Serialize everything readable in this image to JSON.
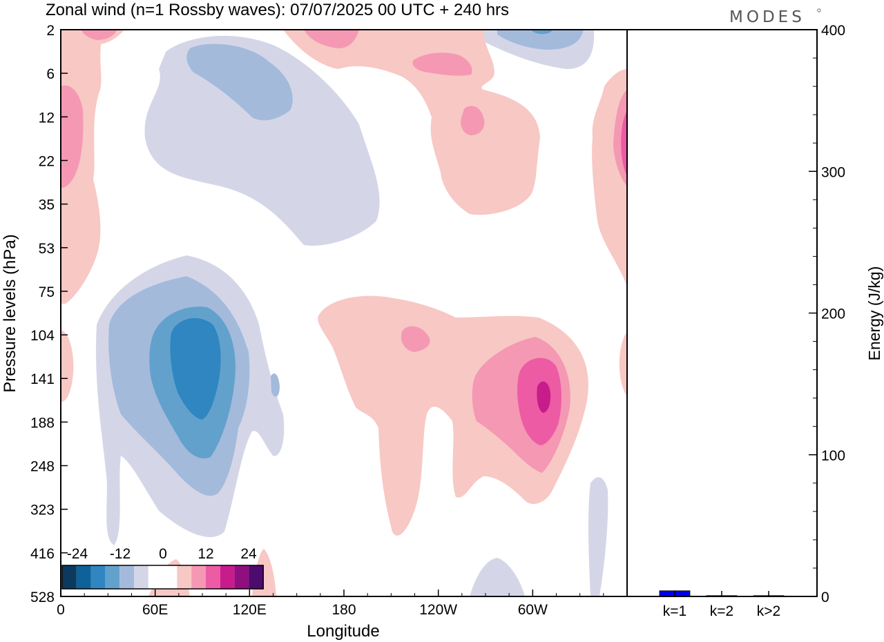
{
  "title": "Zonal wind (n=1 Rossby waves):  07/07/2025  00 UTC  + 240 hrs",
  "logo": "MODES",
  "chart_data": [
    {
      "type": "heatmap",
      "title": "Zonal wind (n=1 Rossby waves):  07/07/2025  00 UTC  + 240 hrs",
      "xlabel": "Longitude",
      "ylabel": "Pressure levels (hPa)",
      "x_ticks": [
        "0",
        "60E",
        "120E",
        "180",
        "120W",
        "60W"
      ],
      "x_tick_values": [
        0,
        60,
        120,
        180,
        240,
        300
      ],
      "xlim": [
        0,
        360
      ],
      "y_ticks": [
        "2",
        "6",
        "12",
        "22",
        "35",
        "53",
        "75",
        "104",
        "141",
        "188",
        "248",
        "323",
        "416",
        "528"
      ],
      "colorbar": {
        "tick_labels": [
          "-24",
          "-12",
          "0",
          "12",
          "24"
        ],
        "colors": [
          "#0b3a5e",
          "#0f619a",
          "#2f86c0",
          "#63a1cd",
          "#a3badb",
          "#d4d6e8",
          "#ffffff",
          "#ffffff",
          "#f7c8c4",
          "#f598b3",
          "#ec5ba4",
          "#c81b8c",
          "#8f0f80",
          "#4d0b6e"
        ]
      },
      "features": [
        {
          "sign": "negative",
          "peak_value": -18,
          "longitude": 85,
          "pressure_hPa": 141
        },
        {
          "sign": "negative",
          "peak_value": -6,
          "longitude": 125,
          "pressure_hPa": 6
        },
        {
          "sign": "negative",
          "peak_value": -6,
          "longitude": 305,
          "pressure_hPa": 2
        },
        {
          "sign": "positive",
          "peak_value": 16,
          "longitude": 306,
          "pressure_hPa": 141
        },
        {
          "sign": "positive",
          "peak_value": 6,
          "longitude": 225,
          "pressure_hPa": 104
        },
        {
          "sign": "positive",
          "peak_value": 6,
          "longitude": 240,
          "pressure_hPa": 6
        },
        {
          "sign": "positive",
          "peak_value": 6,
          "longitude": 5,
          "pressure_hPa": 16
        }
      ]
    },
    {
      "type": "bar",
      "ylabel": "Energy (J/kg)",
      "categories": [
        "k=1",
        "k=2",
        "k>2"
      ],
      "values": [
        4,
        0.5,
        0.5
      ],
      "ylim": [
        0,
        400
      ],
      "y_ticks": [
        "0",
        "100",
        "200",
        "300",
        "400"
      ],
      "bar_color": "#0000ee"
    }
  ]
}
